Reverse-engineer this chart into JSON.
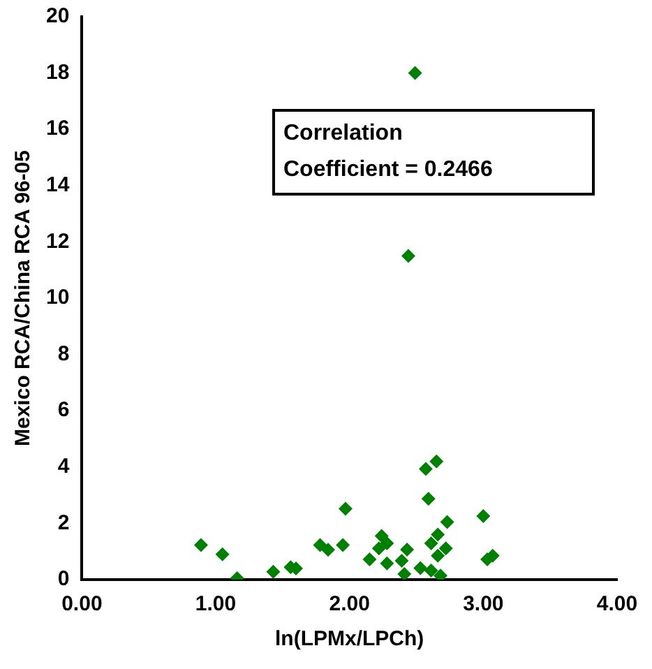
{
  "chart_data": {
    "type": "scatter",
    "xlabel": "ln(LPMx/LPCh)",
    "ylabel": "Mexico RCA/China RCA 96-05",
    "annotations": [
      "Correlation Coefficient = 0.2466"
    ],
    "x": [
      0.89,
      1.05,
      1.16,
      1.43,
      1.56,
      1.6,
      1.78,
      1.84,
      1.95,
      1.97,
      2.15,
      2.24,
      2.22,
      2.28,
      2.28,
      2.41,
      2.43,
      2.39,
      2.53,
      2.57,
      2.65,
      2.59,
      2.61,
      2.61,
      2.68,
      2.66,
      2.72,
      2.66,
      2.73,
      3.0,
      3.03,
      3.07,
      2.49,
      2.44
    ],
    "series": [
      {
        "color": "#008000",
        "values": [
          1.23,
          0.9,
          0.05,
          0.28,
          0.44,
          0.4,
          1.23,
          1.06,
          1.23,
          2.52,
          0.72,
          1.55,
          1.11,
          1.29,
          0.58,
          0.2,
          1.07,
          0.67,
          0.41,
          3.93,
          4.2,
          2.87,
          1.29,
          0.32,
          0.14,
          1.6,
          1.11,
          0.85,
          2.05,
          2.26,
          0.72,
          0.85,
          18.0,
          11.5
        ]
      }
    ],
    "xlim": [
      0,
      4
    ],
    "xticks": [
      {
        "value": 0,
        "label": "0.00"
      },
      {
        "value": 1,
        "label": "1.00"
      },
      {
        "value": 2,
        "label": "2.00"
      },
      {
        "value": 3,
        "label": "3.00"
      },
      {
        "value": 4,
        "label": "4.00"
      }
    ],
    "ylim": [
      0,
      20
    ],
    "yticks": [
      0,
      2,
      4,
      6,
      8,
      10,
      12,
      14,
      16,
      18,
      20
    ],
    "grid": false,
    "legend": false,
    "marker": "diamond"
  }
}
